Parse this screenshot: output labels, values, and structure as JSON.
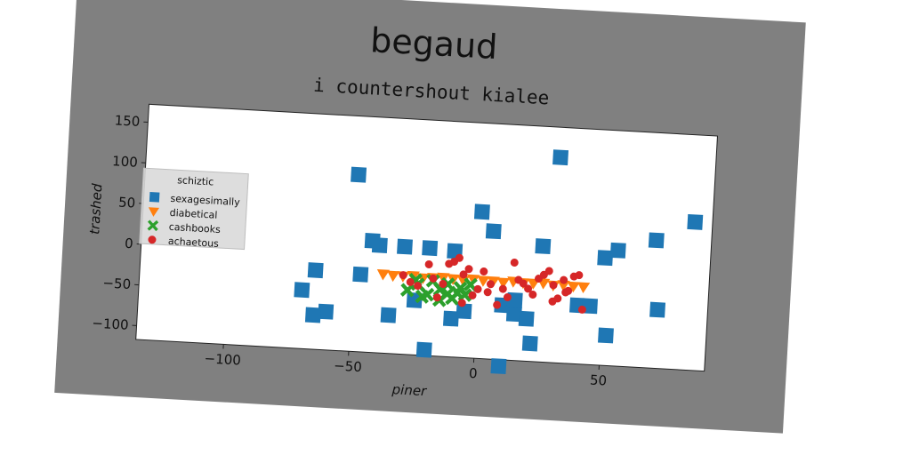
{
  "chart_data": {
    "type": "scatter",
    "title": "begaud",
    "subtitle": "i countershout kialee",
    "xlabel": "piner",
    "ylabel": "trashed",
    "xlim": [
      -135,
      92
    ],
    "ylim": [
      -117,
      172
    ],
    "xticks": [
      -100,
      -50,
      0,
      50
    ],
    "yticks": [
      -100,
      -50,
      0,
      50,
      100,
      150
    ],
    "xtick_labels": [
      "−100",
      "−50",
      "0",
      "50"
    ],
    "ytick_labels": [
      "−100",
      "−50",
      "0",
      "50",
      "100",
      "150"
    ],
    "grid": false,
    "legend": {
      "title": "schiztic",
      "placement": "center-left"
    },
    "series": [
      {
        "name": "sexagesimally",
        "marker": "square",
        "color": "#1f77b4",
        "points": [
          [
            -50,
            100
          ],
          [
            -40,
            15
          ],
          [
            -30,
            15
          ],
          [
            -20,
            15
          ],
          [
            -10,
            13
          ],
          [
            0,
            63
          ],
          [
            5,
            40
          ],
          [
            -65,
            -20
          ],
          [
            -70,
            -45
          ],
          [
            -60,
            -70
          ],
          [
            -47,
            -22
          ],
          [
            -35,
            -70
          ],
          [
            -20,
            -110
          ],
          [
            -10,
            -70
          ],
          [
            -5,
            -60
          ],
          [
            10,
            -125
          ],
          [
            15,
            -60
          ],
          [
            20,
            -65
          ],
          [
            22,
            -95
          ],
          [
            25,
            25
          ],
          [
            30,
            135
          ],
          [
            40,
            -45
          ],
          [
            45,
            -45
          ],
          [
            50,
            15
          ],
          [
            52,
            -80
          ],
          [
            55,
            25
          ],
          [
            70,
            40
          ],
          [
            72,
            -45
          ],
          [
            85,
            65
          ],
          [
            10,
            -50
          ],
          [
            15,
            -43
          ],
          [
            -25,
            -50
          ],
          [
            -65,
            -75
          ],
          [
            -43,
            20
          ]
        ]
      },
      {
        "name": "diabetical",
        "marker": "triangle-down",
        "color": "#ff7f0e",
        "points": [
          [
            -38,
            -20
          ],
          [
            -34,
            -21
          ],
          [
            -30,
            -21
          ],
          [
            -26,
            -20
          ],
          [
            -22,
            -22
          ],
          [
            -18,
            -21
          ],
          [
            -14,
            -20
          ],
          [
            -10,
            -21
          ],
          [
            -6,
            -22
          ],
          [
            -2,
            -20
          ],
          [
            2,
            -21
          ],
          [
            6,
            -21
          ],
          [
            10,
            -22
          ],
          [
            14,
            -20
          ],
          [
            18,
            -21
          ],
          [
            22,
            -21
          ],
          [
            26,
            -20
          ],
          [
            30,
            -22
          ],
          [
            34,
            -21
          ],
          [
            38,
            -22
          ],
          [
            42,
            -22
          ]
        ]
      },
      {
        "name": "cashbooks",
        "marker": "x-thick",
        "color": "#2ca02c",
        "points": [
          [
            -28,
            -38
          ],
          [
            -24,
            -30
          ],
          [
            -20,
            -42
          ],
          [
            -18,
            -25
          ],
          [
            -15,
            -35
          ],
          [
            -12,
            -28
          ],
          [
            -10,
            -45
          ],
          [
            -7,
            -32
          ],
          [
            -5,
            -40
          ],
          [
            -3,
            -27
          ],
          [
            -15,
            -48
          ],
          [
            -22,
            -45
          ],
          [
            -8,
            -38
          ],
          [
            -25,
            -25
          ],
          [
            -12,
            -40
          ]
        ]
      },
      {
        "name": "achaetous",
        "marker": "circle",
        "color": "#d62728",
        "points": [
          [
            -30,
            -20
          ],
          [
            -27,
            -28
          ],
          [
            -24,
            -32
          ],
          [
            -20,
            -5
          ],
          [
            -18,
            -22
          ],
          [
            -14,
            -28
          ],
          [
            -12,
            -3
          ],
          [
            -10,
            0
          ],
          [
            -8,
            5
          ],
          [
            -6,
            -15
          ],
          [
            -4,
            -8
          ],
          [
            -2,
            -40
          ],
          [
            0,
            -32
          ],
          [
            2,
            -10
          ],
          [
            5,
            -25
          ],
          [
            8,
            -50
          ],
          [
            10,
            -30
          ],
          [
            12,
            -40
          ],
          [
            14,
            3
          ],
          [
            16,
            -18
          ],
          [
            18,
            -22
          ],
          [
            20,
            -28
          ],
          [
            22,
            -35
          ],
          [
            24,
            -15
          ],
          [
            26,
            -10
          ],
          [
            28,
            -5
          ],
          [
            30,
            -22
          ],
          [
            32,
            -38
          ],
          [
            34,
            -15
          ],
          [
            36,
            -28
          ],
          [
            38,
            -10
          ],
          [
            40,
            -8
          ],
          [
            42,
            -50
          ],
          [
            -16,
            -45
          ],
          [
            -6,
            -50
          ],
          [
            4,
            -35
          ],
          [
            30,
            -42
          ],
          [
            35,
            -30
          ]
        ]
      }
    ]
  }
}
